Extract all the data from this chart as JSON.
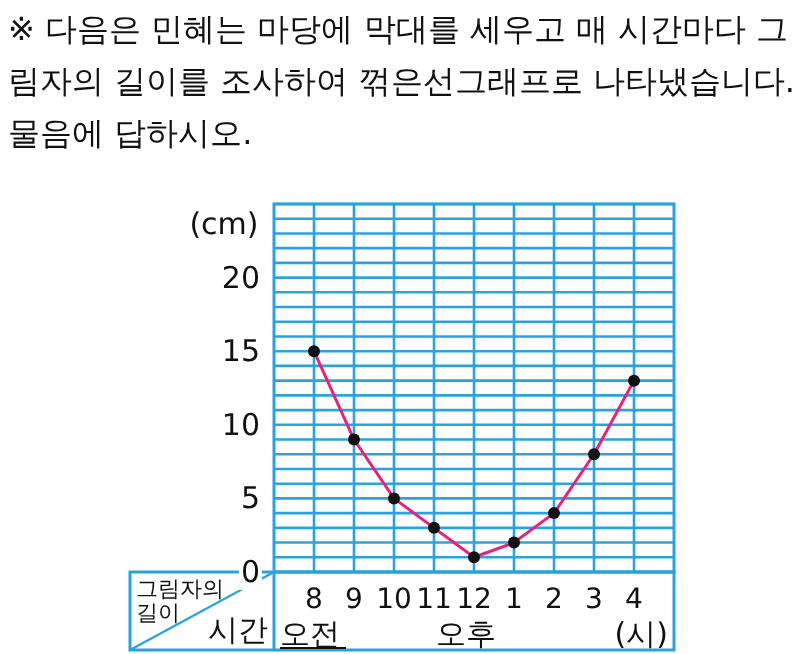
{
  "chart_data": {
    "type": "line",
    "title": "※ 다음은 민혜는 마당에 막대를 세우고 매 시간마다 그림자의 길이를 조사하여 꺾은선그래프로 나타냈습니다. 물음에 답하시오.",
    "xlabel": "시간",
    "ylabel": "그림자의 길이",
    "annotations": [
      "(cm)",
      "오전",
      "오후",
      "(시)"
    ],
    "categories": [
      "8",
      "9",
      "10",
      "11",
      "12",
      "1",
      "2",
      "3",
      "4"
    ],
    "series": [
      {
        "color": "#e5237f",
        "values": [
          15,
          9,
          5,
          3,
          1,
          2,
          4,
          8,
          13
        ]
      }
    ],
    "ylim": [
      0,
      25
    ],
    "yticks": [
      0,
      {
        "value": 1,
        "label": null
      },
      {
        "value": 2,
        "label": null
      },
      {
        "value": 3,
        "label": null
      },
      {
        "value": 4,
        "label": null
      },
      5,
      {
        "value": 6,
        "label": null
      },
      {
        "value": 7,
        "label": null
      },
      {
        "value": 8,
        "label": null
      },
      {
        "value": 9,
        "label": null
      },
      10,
      {
        "value": 11,
        "label": null
      },
      {
        "value": 12,
        "label": null
      },
      {
        "value": 13,
        "label": null
      },
      {
        "value": 14,
        "label": null
      },
      15,
      {
        "value": 16,
        "label": null
      },
      {
        "value": 17,
        "label": null
      },
      {
        "value": 18,
        "label": null
      },
      {
        "value": 19,
        "label": null
      },
      20,
      {
        "value": 21,
        "label": null
      },
      {
        "value": 22,
        "label": null
      },
      {
        "value": 23,
        "label": null
      },
      {
        "value": 24,
        "label": null
      },
      {
        "value": 25,
        "label": null
      }
    ],
    "grid": true,
    "marker": "circle",
    "line_style": "solid"
  }
}
